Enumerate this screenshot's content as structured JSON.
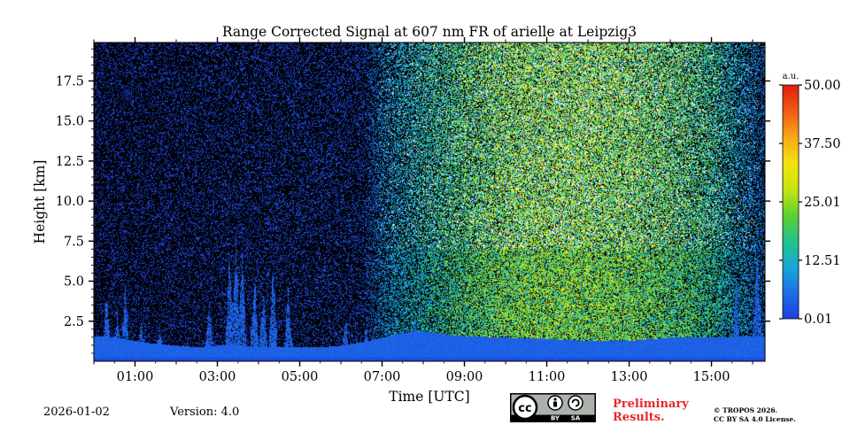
{
  "chart_data": {
    "type": "heatmap",
    "title": "Range Corrected Signal at 607 nm FR of arielle at Leipzig3",
    "xlabel": "Time [UTC]",
    "ylabel": "Height [km]",
    "xlim_hours": [
      0.0,
      16.3
    ],
    "ylim_km": [
      0.0,
      19.9
    ],
    "x_ticks": [
      {
        "value": 1,
        "label": "01:00"
      },
      {
        "value": 3,
        "label": "03:00"
      },
      {
        "value": 5,
        "label": "05:00"
      },
      {
        "value": 7,
        "label": "07:00"
      },
      {
        "value": 9,
        "label": "09:00"
      },
      {
        "value": 11,
        "label": "11:00"
      },
      {
        "value": 13,
        "label": "13:00"
      },
      {
        "value": 15,
        "label": "15:00"
      }
    ],
    "y_ticks": [
      {
        "value": 2.5,
        "label": "2.5"
      },
      {
        "value": 5.0,
        "label": "5.0"
      },
      {
        "value": 7.5,
        "label": "7.5"
      },
      {
        "value": 10.0,
        "label": "10.0"
      },
      {
        "value": 12.5,
        "label": "12.5"
      },
      {
        "value": 15.0,
        "label": "15.0"
      },
      {
        "value": 17.5,
        "label": "17.5"
      }
    ],
    "colorbar": {
      "unit": "a.u.",
      "range": [
        0.01,
        50.0
      ],
      "ticks": [
        {
          "value": 0.01,
          "label": "0.01"
        },
        {
          "value": 12.51,
          "label": "12.51"
        },
        {
          "value": 25.01,
          "label": "25.01"
        },
        {
          "value": 37.5,
          "label": "37.50"
        },
        {
          "value": 50.0,
          "label": "50.00"
        }
      ],
      "colors": [
        "#1f3ee0",
        "#1d6fe8",
        "#18a8d6",
        "#22c38a",
        "#5fd12e",
        "#c8e50f",
        "#f5e20f",
        "#f8a616",
        "#f05a14",
        "#e11d0d"
      ]
    },
    "background_color": "#000000",
    "boundary_layer_top_km": [
      [
        0.0,
        1.6
      ],
      [
        0.5,
        1.5
      ],
      [
        1.0,
        1.3
      ],
      [
        1.5,
        1.1
      ],
      [
        2.0,
        1.0
      ],
      [
        2.5,
        0.9
      ],
      [
        3.0,
        1.0
      ],
      [
        3.5,
        1.0
      ],
      [
        4.0,
        0.9
      ],
      [
        4.5,
        0.9
      ],
      [
        5.0,
        0.9
      ],
      [
        5.5,
        0.9
      ],
      [
        6.0,
        1.0
      ],
      [
        6.5,
        1.2
      ],
      [
        7.0,
        1.5
      ],
      [
        7.5,
        1.8
      ],
      [
        8.0,
        1.9
      ],
      [
        8.5,
        1.7
      ],
      [
        9.0,
        1.6
      ],
      [
        10.0,
        1.5
      ],
      [
        11.0,
        1.4
      ],
      [
        12.0,
        1.3
      ],
      [
        13.0,
        1.3
      ],
      [
        14.0,
        1.5
      ],
      [
        15.0,
        1.5
      ],
      [
        16.0,
        1.6
      ],
      [
        16.3,
        1.6
      ]
    ],
    "noise_signal_by_hour": [
      [
        0.0,
        0.0
      ],
      [
        6.5,
        0.05
      ],
      [
        7.0,
        0.35
      ],
      [
        8.0,
        0.6
      ],
      [
        9.0,
        0.8
      ],
      [
        10.0,
        0.95
      ],
      [
        11.0,
        1.0
      ],
      [
        12.0,
        1.0
      ],
      [
        13.0,
        0.95
      ],
      [
        14.0,
        0.85
      ],
      [
        15.0,
        0.7
      ],
      [
        15.5,
        0.5
      ],
      [
        16.3,
        0.25
      ]
    ]
  },
  "footer": {
    "date": "2026-01-02",
    "version": "Version: 4.0",
    "preliminary_line1": "Preliminary",
    "preliminary_line2": "Results.",
    "preliminary_color": "#e8262a",
    "copyright_line1": "© TROPOS 2026.",
    "copyright_line2": "CC BY SA 4.0 License.",
    "license_badge": {
      "main": "cc",
      "by": "BY",
      "sa": "SA"
    }
  }
}
